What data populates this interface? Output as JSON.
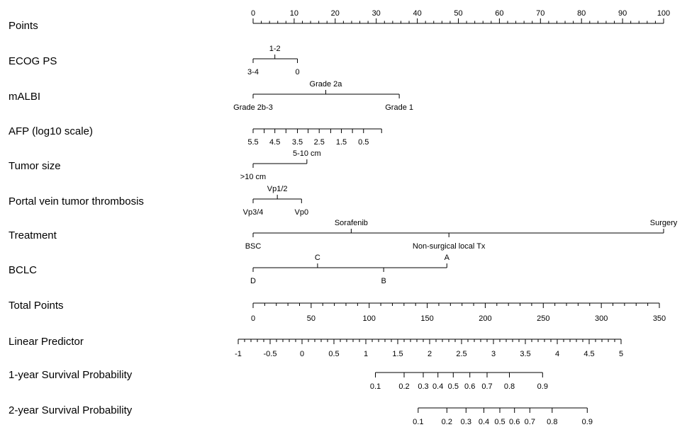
{
  "chart_data": {
    "type": "nomogram",
    "points_scale": {
      "label": "Points",
      "range": [
        0,
        100
      ],
      "major_ticks": [
        0,
        10,
        20,
        30,
        40,
        50,
        60,
        70,
        80,
        90,
        100
      ],
      "minor_step": 2
    },
    "variables": [
      {
        "label": "ECOG PS",
        "levels": [
          {
            "text": "3-4",
            "points": 0,
            "side": "below"
          },
          {
            "text": "1-2",
            "points": 5.3,
            "side": "above"
          },
          {
            "text": "0",
            "points": 10.8,
            "side": "below"
          }
        ]
      },
      {
        "label": "mALBI",
        "levels": [
          {
            "text": "Grade 2b-3",
            "points": 0,
            "side": "below"
          },
          {
            "text": "Grade 2a",
            "points": 17.7,
            "side": "above"
          },
          {
            "text": "Grade 1",
            "points": 35.6,
            "side": "below"
          }
        ]
      },
      {
        "label": "AFP (log10 scale)",
        "continuous": true,
        "ticks": [
          {
            "text": "5.5",
            "points": 0
          },
          {
            "points": 2.7
          },
          {
            "text": "4.5",
            "points": 5.3
          },
          {
            "points": 8.0
          },
          {
            "text": "3.5",
            "points": 10.8
          },
          {
            "points": 13.4
          },
          {
            "text": "2.5",
            "points": 16.1
          },
          {
            "points": 18.9
          },
          {
            "text": "1.5",
            "points": 21.5
          },
          {
            "points": 24.2
          },
          {
            "text": "0.5",
            "points": 26.9
          },
          {
            "points": 31.3
          }
        ]
      },
      {
        "label": "Tumor size",
        "levels": [
          {
            "text": ">10 cm",
            "points": 0,
            "side": "below"
          },
          {
            "text": "5-10 cm",
            "points": 13.1,
            "side": "above"
          }
        ]
      },
      {
        "label": "Portal vein tumor thrombosis",
        "levels": [
          {
            "text": "Vp3/4",
            "points": 0,
            "side": "below"
          },
          {
            "text": "Vp1/2",
            "points": 5.9,
            "side": "above"
          },
          {
            "text": "Vp0",
            "points": 11.8,
            "side": "below"
          }
        ]
      },
      {
        "label": "Treatment",
        "levels": [
          {
            "text": "BSC",
            "points": 0,
            "side": "below"
          },
          {
            "text": "Sorafenib",
            "points": 23.9,
            "side": "above"
          },
          {
            "text": "Non-surgical local Tx",
            "points": 47.7,
            "side": "below"
          },
          {
            "text": "Surgery",
            "points": 100,
            "side": "above"
          }
        ]
      },
      {
        "label": "BCLC",
        "levels": [
          {
            "text": "D",
            "points": 0,
            "side": "below"
          },
          {
            "text": "C",
            "points": 15.7,
            "side": "above"
          },
          {
            "text": "B",
            "points": 31.8,
            "side": "below"
          },
          {
            "text": "A",
            "points": 47.2,
            "side": "above"
          }
        ]
      }
    ],
    "total_points": {
      "label": "Total Points",
      "range": [
        0,
        350
      ],
      "major_ticks": [
        0,
        50,
        100,
        150,
        200,
        250,
        300,
        350
      ],
      "minor_step": 10
    },
    "linear_predictor": {
      "label": "Linear Predictor",
      "range": [
        -1,
        5
      ],
      "major_ticks": [
        -1,
        -0.5,
        0,
        0.5,
        1,
        1.5,
        2,
        2.5,
        3,
        3.5,
        4,
        4.5,
        5
      ],
      "tick_labels": [
        "-1",
        "-0.5",
        "0",
        "0.5",
        "1",
        "1.5",
        "2",
        "2.5",
        "3",
        "3.5",
        "4",
        "4.5",
        "5"
      ],
      "minor_step": 0.1
    },
    "survival_scales": [
      {
        "label": "1-year Survival Probability",
        "ticks": [
          {
            "text": "0.1",
            "lp": 1.15
          },
          {
            "text": "0.2",
            "lp": 1.6
          },
          {
            "text": "0.3",
            "lp": 1.9
          },
          {
            "text": "0.4",
            "lp": 2.13
          },
          {
            "text": "0.5",
            "lp": 2.37
          },
          {
            "text": "0.6",
            "lp": 2.63
          },
          {
            "text": "0.7",
            "lp": 2.9
          },
          {
            "text": "0.8",
            "lp": 3.25
          },
          {
            "text": "0.9",
            "lp": 3.77
          }
        ]
      },
      {
        "label": "2-year Survival Probability",
        "ticks": [
          {
            "text": "0.1",
            "lp": 1.82
          },
          {
            "text": "0.2",
            "lp": 2.27
          },
          {
            "text": "0.3",
            "lp": 2.57
          },
          {
            "text": "0.4",
            "lp": 2.85
          },
          {
            "text": "0.5",
            "lp": 3.1
          },
          {
            "text": "0.6",
            "lp": 3.33
          },
          {
            "text": "0.7",
            "lp": 3.57
          },
          {
            "text": "0.8",
            "lp": 3.92
          },
          {
            "text": "0.9",
            "lp": 4.47
          }
        ]
      }
    ]
  }
}
